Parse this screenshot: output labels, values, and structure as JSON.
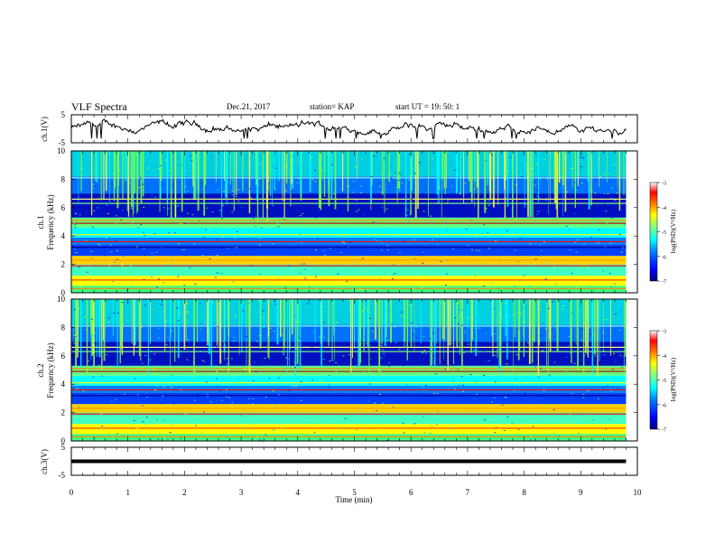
{
  "header": {
    "title": "VLF Spectra",
    "date": "Dec.21, 2017",
    "station": "station= KAP",
    "start_time": "start UT =  19: 50: 1"
  },
  "chart_data": [
    {
      "panel": "ch1-waveform",
      "type": "line",
      "ylabel": "ch.1(V)",
      "ylim": [
        -5,
        5
      ],
      "yticks": [
        5,
        -5
      ],
      "xlim": [
        0,
        10
      ],
      "trace_range_min": [
        0,
        9.8
      ],
      "trace_level_v": [
        -2,
        3
      ]
    },
    {
      "panel": "ch1-spectrogram",
      "type": "heatmap",
      "ylabel": "ch.1",
      "ylabel2": "Frequency (kHz)",
      "ylim_khz": [
        0,
        10
      ],
      "yticks": [
        0,
        2,
        4,
        6,
        8,
        10
      ],
      "xlim_min": [
        0,
        10
      ],
      "data_range_min": [
        0,
        9.8
      ],
      "colorbar": {
        "label": "log(PSD)(V²/Hz)",
        "range": [
          -7,
          -3
        ],
        "ticks": [
          -3,
          -4,
          -5,
          -6,
          -7
        ]
      }
    },
    {
      "panel": "ch2-spectrogram",
      "type": "heatmap",
      "ylabel": "ch.2",
      "ylabel2": "Frequency (kHz)",
      "ylim_khz": [
        0,
        10
      ],
      "yticks": [
        0,
        2,
        4,
        6,
        8,
        10
      ],
      "xlim_min": [
        0,
        10
      ],
      "data_range_min": [
        0,
        9.8
      ],
      "colorbar": {
        "label": "log(PSD)(V²/Hz)",
        "range": [
          -7,
          -3
        ],
        "ticks": [
          -3,
          -4,
          -5,
          -6,
          -7
        ]
      }
    },
    {
      "panel": "ch3-waveform",
      "type": "line",
      "ylabel": "ch.3(V)",
      "ylim": [
        -5,
        5
      ],
      "yticks": [
        5,
        -5
      ],
      "xlim": [
        0,
        10
      ],
      "trace_level_v": 0,
      "trace_range_min": [
        0,
        9.8
      ]
    }
  ],
  "xaxis": {
    "label": "Time (min)",
    "ticks": [
      "0",
      "1",
      "2",
      "3",
      "4",
      "5",
      "6",
      "7",
      "8",
      "9",
      "10"
    ]
  },
  "colors": {
    "colormap": [
      "#00007f",
      "#0000ff",
      "#0080ff",
      "#00ffff",
      "#80ff80",
      "#ffff00",
      "#ff8000",
      "#ff0000",
      "#ffffff"
    ],
    "trace": "#000000"
  }
}
